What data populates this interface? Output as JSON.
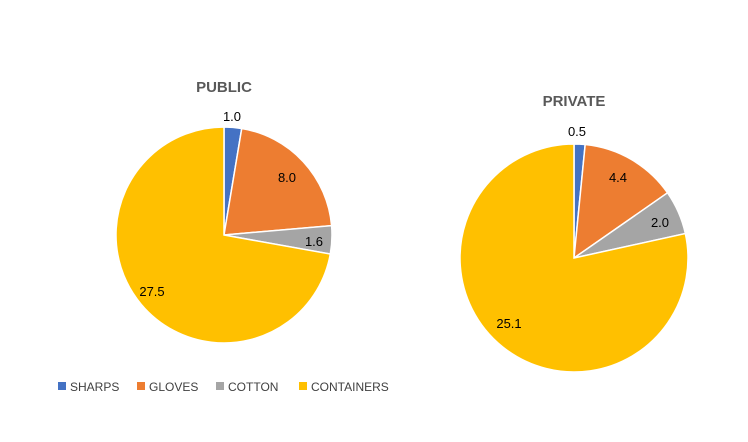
{
  "chart_data": [
    {
      "type": "pie",
      "title": "PUBLIC",
      "categories": [
        "SHARPS",
        "GLOVES",
        "COTTON",
        "CONTAINERS"
      ],
      "values": [
        1.0,
        8.0,
        1.6,
        27.5
      ],
      "labels": [
        "1.0",
        "8.0",
        "1.6",
        "27.5"
      ]
    },
    {
      "type": "pie",
      "title": "PRIVATE",
      "categories": [
        "SHARPS",
        "GLOVES",
        "COTTON",
        "CONTAINERS"
      ],
      "values": [
        0.5,
        4.4,
        2.0,
        25.1
      ],
      "labels": [
        "0.5",
        "4.4",
        "2.0",
        "25.1"
      ]
    }
  ],
  "legend": {
    "placement": "bottom-left",
    "items": [
      "SHARPS",
      "GLOVES",
      "COTTON",
      "CONTAINERS"
    ]
  },
  "colors": {
    "SHARPS": "#4472C4",
    "GLOVES": "#ED7D31",
    "COTTON": "#A5A5A5",
    "CONTAINERS": "#FFC000"
  }
}
